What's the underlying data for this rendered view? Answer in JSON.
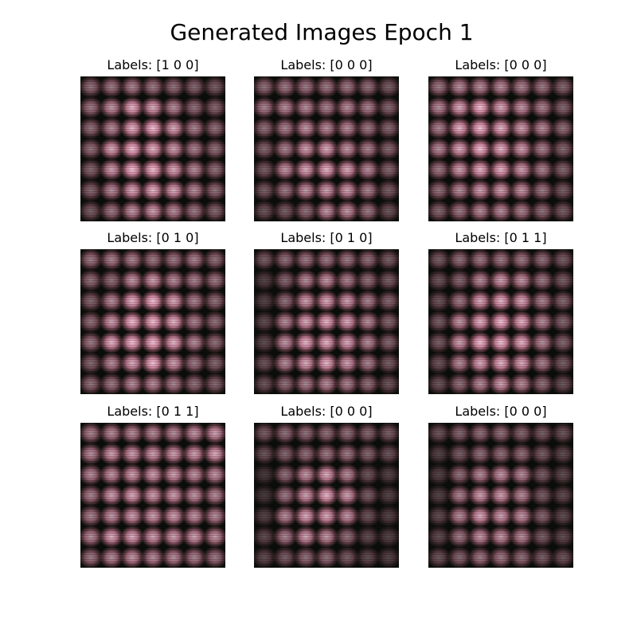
{
  "figure": {
    "title": "Generated Images Epoch 1",
    "panels": [
      {
        "label": "Labels: [1 0 0]",
        "pattern": [
          [
            0.55,
            0.6,
            0.65,
            0.6,
            0.55,
            0.5,
            0.45
          ],
          [
            0.6,
            0.75,
            0.9,
            0.85,
            0.7,
            0.55,
            0.5
          ],
          [
            0.55,
            0.7,
            0.9,
            0.95,
            0.85,
            0.65,
            0.55
          ],
          [
            0.55,
            0.85,
            0.95,
            0.9,
            0.8,
            0.65,
            0.55
          ],
          [
            0.5,
            0.8,
            0.95,
            0.95,
            0.85,
            0.7,
            0.55
          ],
          [
            0.5,
            0.7,
            0.85,
            0.9,
            0.85,
            0.7,
            0.55
          ],
          [
            0.45,
            0.6,
            0.75,
            0.8,
            0.7,
            0.6,
            0.5
          ]
        ]
      },
      {
        "label": "Labels: [0 0 0]",
        "pattern": [
          [
            0.55,
            0.6,
            0.6,
            0.6,
            0.6,
            0.55,
            0.45
          ],
          [
            0.65,
            0.7,
            0.7,
            0.65,
            0.7,
            0.65,
            0.5
          ],
          [
            0.55,
            0.65,
            0.75,
            0.7,
            0.7,
            0.6,
            0.5
          ],
          [
            0.5,
            0.65,
            0.8,
            0.85,
            0.75,
            0.65,
            0.5
          ],
          [
            0.45,
            0.75,
            0.85,
            0.9,
            0.85,
            0.7,
            0.5
          ],
          [
            0.45,
            0.6,
            0.75,
            0.8,
            0.8,
            0.65,
            0.45
          ],
          [
            0.4,
            0.45,
            0.55,
            0.75,
            0.75,
            0.6,
            0.4
          ]
        ]
      },
      {
        "label": "Labels: [0 0 0]",
        "pattern": [
          [
            0.6,
            0.7,
            0.7,
            0.7,
            0.65,
            0.6,
            0.5
          ],
          [
            0.7,
            0.85,
            0.95,
            0.85,
            0.75,
            0.65,
            0.5
          ],
          [
            0.65,
            0.9,
            0.95,
            0.9,
            0.8,
            0.7,
            0.55
          ],
          [
            0.7,
            0.85,
            0.95,
            0.9,
            0.8,
            0.65,
            0.5
          ],
          [
            0.6,
            0.8,
            0.9,
            0.9,
            0.8,
            0.65,
            0.5
          ],
          [
            0.55,
            0.7,
            0.8,
            0.8,
            0.75,
            0.6,
            0.45
          ],
          [
            0.5,
            0.6,
            0.7,
            0.7,
            0.65,
            0.55,
            0.45
          ]
        ]
      },
      {
        "label": "Labels: [0 1 0]",
        "pattern": [
          [
            0.6,
            0.65,
            0.65,
            0.6,
            0.6,
            0.65,
            0.55
          ],
          [
            0.55,
            0.55,
            0.75,
            0.8,
            0.7,
            0.65,
            0.6
          ],
          [
            0.5,
            0.7,
            0.9,
            0.95,
            0.85,
            0.65,
            0.55
          ],
          [
            0.55,
            0.8,
            0.95,
            0.95,
            0.9,
            0.65,
            0.55
          ],
          [
            0.6,
            0.9,
            0.95,
            0.95,
            0.9,
            0.7,
            0.55
          ],
          [
            0.5,
            0.7,
            0.85,
            0.95,
            0.8,
            0.6,
            0.5
          ],
          [
            0.55,
            0.6,
            0.7,
            0.7,
            0.65,
            0.55,
            0.5
          ]
        ]
      },
      {
        "label": "Labels: [0 1 0]",
        "pattern": [
          [
            0.45,
            0.55,
            0.6,
            0.6,
            0.6,
            0.55,
            0.45
          ],
          [
            0.3,
            0.5,
            0.7,
            0.75,
            0.65,
            0.55,
            0.45
          ],
          [
            0.3,
            0.55,
            0.8,
            0.85,
            0.8,
            0.65,
            0.5
          ],
          [
            0.35,
            0.7,
            0.85,
            0.9,
            0.85,
            0.7,
            0.5
          ],
          [
            0.35,
            0.75,
            0.9,
            0.9,
            0.85,
            0.7,
            0.5
          ],
          [
            0.4,
            0.7,
            0.85,
            0.9,
            0.8,
            0.65,
            0.45
          ],
          [
            0.4,
            0.55,
            0.65,
            0.7,
            0.65,
            0.55,
            0.4
          ]
        ]
      },
      {
        "label": "Labels: [0 1 1]",
        "pattern": [
          [
            0.45,
            0.55,
            0.6,
            0.6,
            0.6,
            0.55,
            0.45
          ],
          [
            0.4,
            0.5,
            0.7,
            0.8,
            0.75,
            0.6,
            0.45
          ],
          [
            0.4,
            0.6,
            0.85,
            0.9,
            0.85,
            0.65,
            0.5
          ],
          [
            0.45,
            0.75,
            0.9,
            0.95,
            0.9,
            0.7,
            0.5
          ],
          [
            0.45,
            0.8,
            0.95,
            0.95,
            0.9,
            0.7,
            0.5
          ],
          [
            0.4,
            0.7,
            0.85,
            0.9,
            0.85,
            0.65,
            0.45
          ],
          [
            0.4,
            0.55,
            0.7,
            0.8,
            0.7,
            0.55,
            0.4
          ]
        ]
      },
      {
        "label": "Labels: [0 1 1]",
        "pattern": [
          [
            0.65,
            0.7,
            0.7,
            0.7,
            0.7,
            0.75,
            0.8
          ],
          [
            0.7,
            0.8,
            0.8,
            0.8,
            0.8,
            0.8,
            0.85
          ],
          [
            0.7,
            0.75,
            0.8,
            0.8,
            0.8,
            0.75,
            0.75
          ],
          [
            0.65,
            0.8,
            0.85,
            0.8,
            0.8,
            0.75,
            0.7
          ],
          [
            0.65,
            0.75,
            0.8,
            0.8,
            0.8,
            0.75,
            0.7
          ],
          [
            0.7,
            0.85,
            0.85,
            0.8,
            0.8,
            0.8,
            0.75
          ],
          [
            0.6,
            0.7,
            0.75,
            0.7,
            0.7,
            0.65,
            0.6
          ]
        ]
      },
      {
        "label": "Labels: [0 0 0]",
        "pattern": [
          [
            0.45,
            0.55,
            0.55,
            0.55,
            0.55,
            0.5,
            0.45
          ],
          [
            0.4,
            0.5,
            0.55,
            0.6,
            0.6,
            0.5,
            0.4
          ],
          [
            0.25,
            0.55,
            0.75,
            0.85,
            0.7,
            0.4,
            0.3
          ],
          [
            0.25,
            0.6,
            0.8,
            0.9,
            0.8,
            0.45,
            0.3
          ],
          [
            0.3,
            0.7,
            0.85,
            0.85,
            0.75,
            0.4,
            0.3
          ],
          [
            0.35,
            0.65,
            0.8,
            0.75,
            0.55,
            0.35,
            0.3
          ],
          [
            0.35,
            0.45,
            0.55,
            0.55,
            0.45,
            0.35,
            0.3
          ]
        ]
      },
      {
        "label": "Labels: [0 0 0]",
        "pattern": [
          [
            0.4,
            0.5,
            0.55,
            0.55,
            0.5,
            0.45,
            0.4
          ],
          [
            0.3,
            0.45,
            0.55,
            0.55,
            0.55,
            0.45,
            0.35
          ],
          [
            0.3,
            0.55,
            0.7,
            0.75,
            0.7,
            0.45,
            0.35
          ],
          [
            0.3,
            0.65,
            0.8,
            0.8,
            0.7,
            0.45,
            0.35
          ],
          [
            0.35,
            0.7,
            0.85,
            0.8,
            0.75,
            0.5,
            0.35
          ],
          [
            0.35,
            0.6,
            0.75,
            0.75,
            0.7,
            0.45,
            0.35
          ],
          [
            0.4,
            0.5,
            0.6,
            0.6,
            0.55,
            0.45,
            0.4
          ]
        ]
      }
    ]
  }
}
